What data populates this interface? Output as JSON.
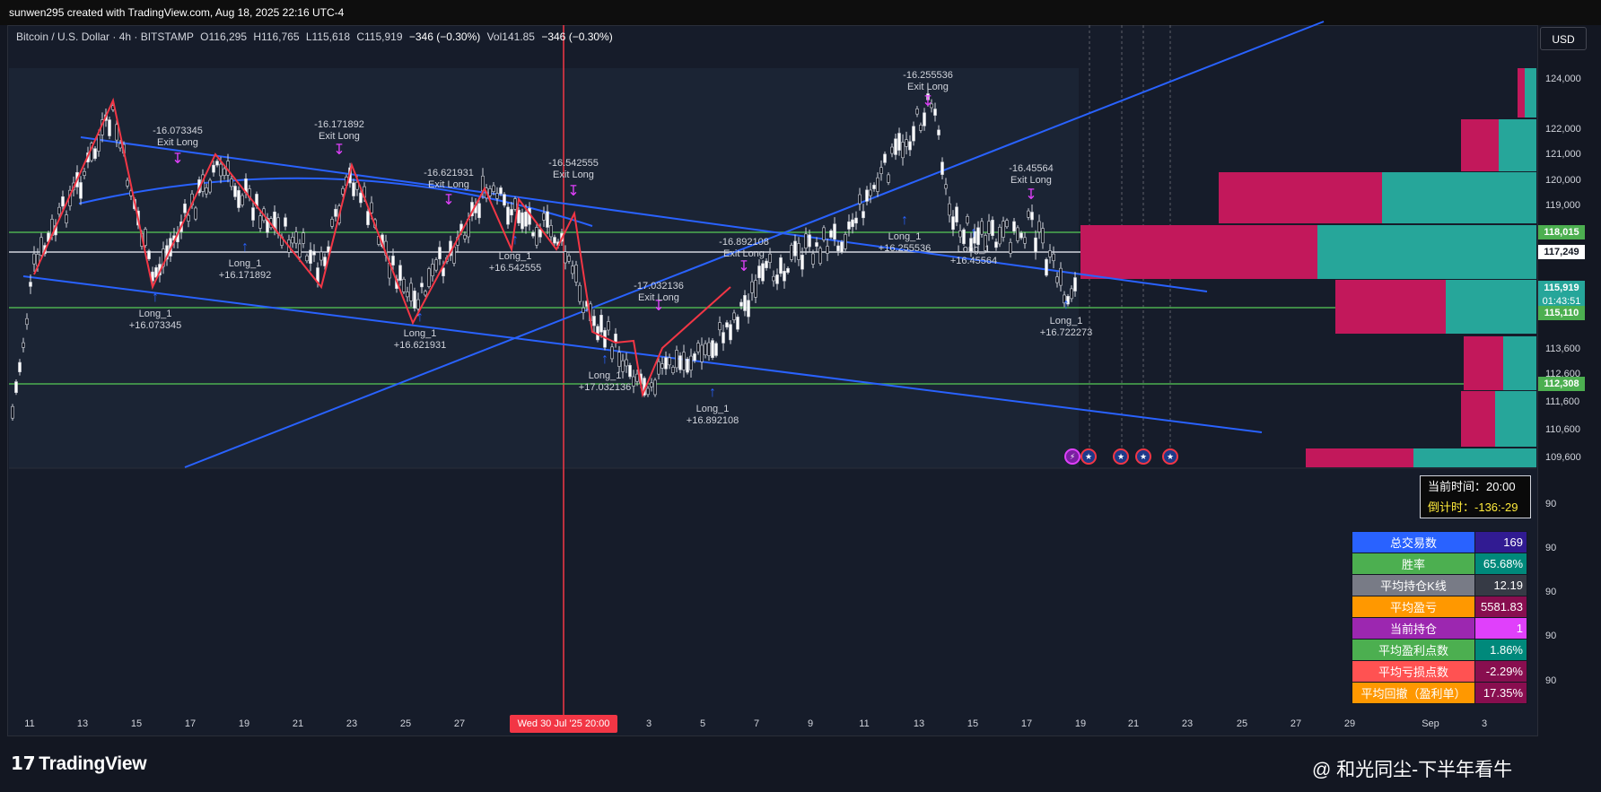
{
  "header": {
    "credit": "sunwen295 created with TradingView.com, Aug 18, 2025 22:16 UTC-4"
  },
  "legend": {
    "symbol": "Bitcoin / U.S. Dollar · 4h · BITSTAMP",
    "open": "O116,295",
    "high": "H116,765",
    "low": "L115,618",
    "close": "C115,919",
    "change": "−346 (−0.30%)",
    "volume": "Vol141.85",
    "vol_change": "−346 (−0.30%)"
  },
  "currency": "USD",
  "price_axis": [
    "124,000",
    "122,000",
    "121,000",
    "120,000",
    "119,000",
    "113,600",
    "112,600",
    "111,600",
    "110,600",
    "109,600"
  ],
  "indicator_axis": [
    "90",
    "90",
    "90",
    "90",
    "90"
  ],
  "price_tags": {
    "green_1": "118,015",
    "white": "117,249",
    "current": "115,919",
    "countdown": "01:43:51",
    "green_2": "115,110",
    "green_3": "112,308"
  },
  "x_ticks": [
    "11",
    "13",
    "15",
    "17",
    "19",
    "21",
    "23",
    "25",
    "27",
    "3",
    "5",
    "7",
    "9",
    "11",
    "13",
    "15",
    "17",
    "19",
    "21",
    "23",
    "25",
    "27",
    "29",
    "Sep",
    "3"
  ],
  "date_marker": "Wed 30 Jul '25   20:00",
  "annotations": {
    "exit": [
      {
        "value": "-16.073345",
        "label": "Exit Long"
      },
      {
        "value": "-16.171892",
        "label": "Exit Long"
      },
      {
        "value": "-16.621931",
        "label": "Exit Long"
      },
      {
        "value": "-16.542555",
        "label": "Exit Long"
      },
      {
        "value": "-16.892108",
        "label": "Exit Long"
      },
      {
        "value": "-17.032136",
        "label": "Exit Long"
      },
      {
        "value": "-16.255536",
        "label": "Exit Long"
      },
      {
        "value": "-16.45564",
        "label": "Exit Long"
      }
    ],
    "long": [
      {
        "label": "Long_1",
        "value": "+16.073345"
      },
      {
        "label": "Long_1",
        "value": "+16.171892"
      },
      {
        "label": "Long_1",
        "value": "+16.621931"
      },
      {
        "label": "Long_1",
        "value": "+16.542555"
      },
      {
        "label": "Long_1",
        "value": "+17.032136"
      },
      {
        "label": "Long_1",
        "value": "+16.892108"
      },
      {
        "label": "Long_1",
        "value": "+16.255536"
      },
      {
        "label": "Long_1",
        "value": "+16.45564"
      },
      {
        "label": "Long_1",
        "value": "+16.722273"
      }
    ]
  },
  "time_box": {
    "current_label": "当前时间：",
    "current_value": "20:00",
    "countdown_label": "倒计时：",
    "countdown_value": "-136:-29"
  },
  "stats": [
    {
      "label": "总交易数",
      "value": "169",
      "label_color": "#2962ff",
      "value_color": "#311b92"
    },
    {
      "label": "胜率",
      "value": "65.68%",
      "label_color": "#4caf50",
      "value_color": "#00897b"
    },
    {
      "label": "平均持仓K线",
      "value": "12.19",
      "label_color": "#787b86",
      "value_color": "#363a45"
    },
    {
      "label": "平均盈亏",
      "value": "5581.83",
      "label_color": "#ff9800",
      "value_color": "#880e4f"
    },
    {
      "label": "当前持仓",
      "value": "1",
      "label_color": "#9c27b0",
      "value_color": "#e040fb"
    },
    {
      "label": "平均盈利点数",
      "value": "1.86%",
      "label_color": "#4caf50",
      "value_color": "#00897b"
    },
    {
      "label": "平均亏损点数",
      "value": "-2.29%",
      "label_color": "#ff5252",
      "value_color": "#880e4f"
    },
    {
      "label": "平均回撤（盈利单）",
      "value": "17.35%",
      "label_color": "#ff9800",
      "value_color": "#880e4f"
    }
  ],
  "brand": "TradingView",
  "watermark": "@ 和光同尘-下半年看牛",
  "colors": {
    "background": "#161c2a",
    "trendline": "#2962ff",
    "zigzag": "#f23645",
    "support": "#4caf50",
    "profile_sell": "#c2185b",
    "profile_buy": "#26a69a",
    "exit_marker": "#e040fb"
  }
}
